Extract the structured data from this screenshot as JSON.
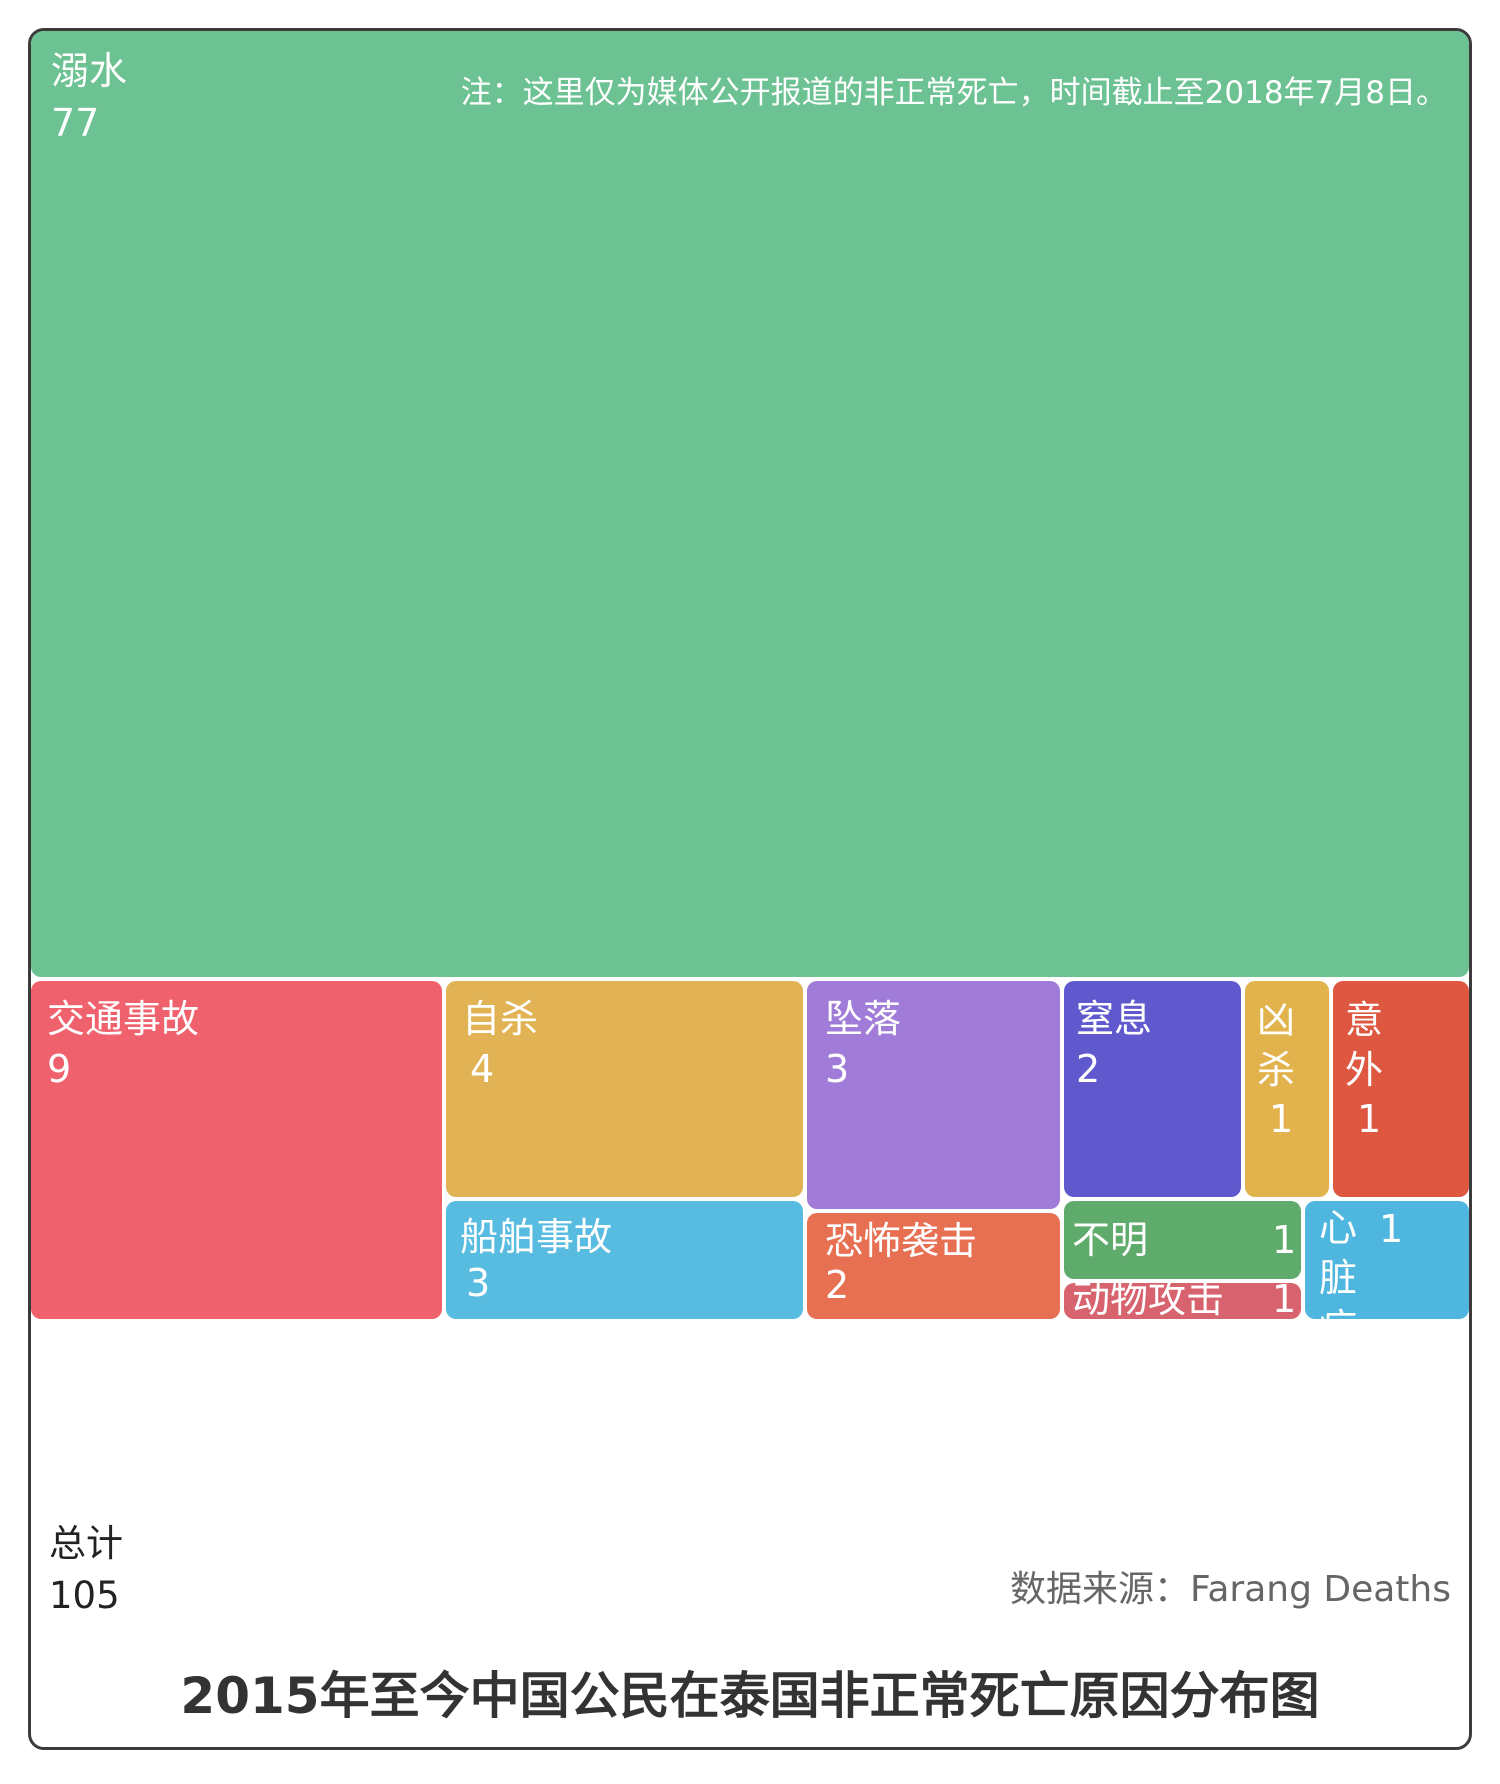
{
  "chart_data": {
    "type": "treemap",
    "title": "2015年至今中国公民在泰国非正常死亡原因分布图",
    "note": "注：这里仅为媒体公开报道的非正常死亡，时间截止至2018年7月8日。",
    "total_label": "总计",
    "total_value": 105,
    "source": "数据来源：Farang Deaths",
    "items": [
      {
        "id": "drowning",
        "label": "溺水",
        "value": 77,
        "color": "#6cc292"
      },
      {
        "id": "traffic",
        "label": "交通事故",
        "value": 9,
        "color": "#ef626d"
      },
      {
        "id": "suicide",
        "label": "自杀",
        "value": 4,
        "color": "#e1b355"
      },
      {
        "id": "ship",
        "label": "船舶事故",
        "value": 3,
        "color": "#58bbe0"
      },
      {
        "id": "fall",
        "label": "坠落",
        "value": 3,
        "color": "#a07bd8"
      },
      {
        "id": "terror",
        "label": "恐怖袭击",
        "value": 2,
        "color": "#e87052"
      },
      {
        "id": "suffocation",
        "label": "窒息",
        "value": 2,
        "color": "#5f59cd"
      },
      {
        "id": "homicide",
        "label": "凶杀",
        "value": 1,
        "color": "#e2b24d"
      },
      {
        "id": "accident",
        "label": "意外",
        "value": 1,
        "color": "#de5841"
      },
      {
        "id": "unknown",
        "label": "不明",
        "value": 1,
        "color": "#5fab6b"
      },
      {
        "id": "animal",
        "label": "动物攻击",
        "value": 1,
        "color": "#d7636f"
      },
      {
        "id": "heart",
        "label": "心脏病",
        "value": 1,
        "color": "#4fb6df"
      }
    ]
  }
}
